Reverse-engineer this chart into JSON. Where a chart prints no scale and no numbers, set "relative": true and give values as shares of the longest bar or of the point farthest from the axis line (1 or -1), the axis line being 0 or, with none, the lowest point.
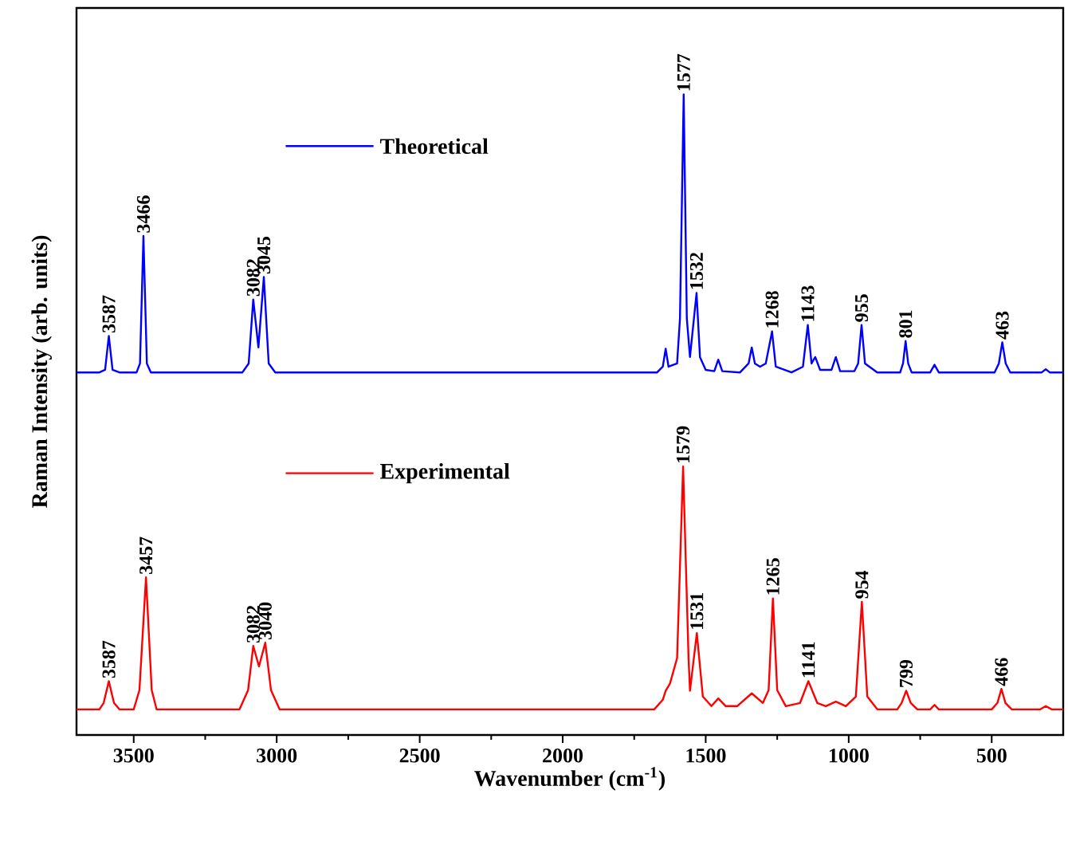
{
  "chart_data": {
    "type": "line",
    "relative": true,
    "xlabel": "Wavenumber (cm$^{-1}$)",
    "ylabel": "Raman Intensity (arb. units)",
    "xlim": [
      3700,
      250
    ],
    "xticks": [
      3500,
      3000,
      2500,
      2000,
      1500,
      1000,
      500
    ],
    "tick_labels": "x",
    "legend": "left",
    "marker": "none",
    "line_style": "solid",
    "series": [
      {
        "name": "Theoretical",
        "color": "#0000ff",
        "x": [
          3700,
          3620,
          3600,
          3587,
          3574,
          3550,
          3490,
          3478,
          3466,
          3454,
          3440,
          3120,
          3098,
          3082,
          3064,
          3045,
          3028,
          3005,
          1670,
          1650,
          1640,
          1630,
          1600,
          1590,
          1577,
          1566,
          1555,
          1532,
          1520,
          1500,
          1470,
          1456,
          1442,
          1380,
          1350,
          1339,
          1328,
          1310,
          1290,
          1268,
          1255,
          1200,
          1160,
          1143,
          1130,
          1117,
          1100,
          1060,
          1045,
          1030,
          980,
          967,
          955,
          943,
          900,
          820,
          810,
          801,
          792,
          780,
          715,
          700,
          685,
          490,
          475,
          463,
          451,
          435,
          325,
          311,
          297,
          250
        ],
        "values": [
          0.566,
          0.566,
          0.57,
          0.623,
          0.57,
          0.566,
          0.566,
          0.58,
          0.779,
          0.58,
          0.566,
          0.566,
          0.58,
          0.68,
          0.605,
          0.715,
          0.58,
          0.566,
          0.566,
          0.575,
          0.603,
          0.575,
          0.58,
          0.65,
          1.0,
          0.65,
          0.59,
          0.69,
          0.59,
          0.57,
          0.568,
          0.586,
          0.568,
          0.566,
          0.58,
          0.605,
          0.58,
          0.575,
          0.58,
          0.63,
          0.575,
          0.566,
          0.575,
          0.64,
          0.58,
          0.59,
          0.57,
          0.57,
          0.59,
          0.568,
          0.568,
          0.58,
          0.64,
          0.58,
          0.566,
          0.566,
          0.58,
          0.615,
          0.58,
          0.566,
          0.566,
          0.578,
          0.566,
          0.566,
          0.58,
          0.613,
          0.58,
          0.566,
          0.566,
          0.571,
          0.566,
          0.566
        ]
      },
      {
        "name": "Experimental",
        "color": "#ff0000",
        "x": [
          3700,
          3620,
          3605,
          3587,
          3569,
          3550,
          3500,
          3480,
          3457,
          3437,
          3420,
          3130,
          3100,
          3082,
          3062,
          3040,
          3020,
          2990,
          1680,
          1650,
          1640,
          1625,
          1600,
          1579,
          1560,
          1555,
          1531,
          1510,
          1480,
          1456,
          1430,
          1390,
          1339,
          1300,
          1280,
          1265,
          1250,
          1220,
          1170,
          1141,
          1110,
          1080,
          1045,
          1010,
          975,
          954,
          935,
          900,
          830,
          815,
          799,
          783,
          760,
          715,
          700,
          685,
          500,
          480,
          466,
          452,
          430,
          330,
          311,
          290,
          250
        ],
        "values": [
          0.04,
          0.04,
          0.05,
          0.084,
          0.05,
          0.04,
          0.04,
          0.07,
          0.246,
          0.07,
          0.04,
          0.04,
          0.07,
          0.139,
          0.107,
          0.144,
          0.07,
          0.04,
          0.04,
          0.055,
          0.069,
          0.08,
          0.12,
          0.419,
          0.12,
          0.069,
          0.159,
          0.06,
          0.045,
          0.057,
          0.045,
          0.045,
          0.065,
          0.05,
          0.07,
          0.213,
          0.07,
          0.045,
          0.05,
          0.084,
          0.05,
          0.045,
          0.052,
          0.045,
          0.06,
          0.208,
          0.06,
          0.04,
          0.04,
          0.05,
          0.069,
          0.05,
          0.04,
          0.04,
          0.047,
          0.04,
          0.04,
          0.05,
          0.072,
          0.05,
          0.04,
          0.04,
          0.045,
          0.04,
          0.04
        ]
      }
    ],
    "annotations": [
      {
        "text": "3587",
        "x": 3587,
        "y": 0.623
      },
      {
        "text": "3466",
        "x": 3466,
        "y": 0.779
      },
      {
        "text": "3082",
        "x": 3082,
        "y": 0.68
      },
      {
        "text": "3045",
        "x": 3045,
        "y": 0.715
      },
      {
        "text": "1577",
        "x": 1577,
        "y": 1.0
      },
      {
        "text": "1532",
        "x": 1532,
        "y": 0.69
      },
      {
        "text": "1268",
        "x": 1268,
        "y": 0.63
      },
      {
        "text": "1143",
        "x": 1143,
        "y": 0.64
      },
      {
        "text": "955",
        "x": 955,
        "y": 0.64
      },
      {
        "text": "801",
        "x": 801,
        "y": 0.615
      },
      {
        "text": "463",
        "x": 463,
        "y": 0.613
      },
      {
        "text": "3587",
        "x": 3587,
        "y": 0.084
      },
      {
        "text": "3457",
        "x": 3457,
        "y": 0.246
      },
      {
        "text": "3082",
        "x": 3082,
        "y": 0.139
      },
      {
        "text": "3040",
        "x": 3040,
        "y": 0.144
      },
      {
        "text": "1579",
        "x": 1579,
        "y": 0.419
      },
      {
        "text": "1531",
        "x": 1531,
        "y": 0.159
      },
      {
        "text": "1265",
        "x": 1265,
        "y": 0.213
      },
      {
        "text": "1141",
        "x": 1141,
        "y": 0.084
      },
      {
        "text": "954",
        "x": 954,
        "y": 0.208
      },
      {
        "text": "799",
        "x": 799,
        "y": 0.069
      },
      {
        "text": "466",
        "x": 466,
        "y": 0.072
      }
    ]
  }
}
